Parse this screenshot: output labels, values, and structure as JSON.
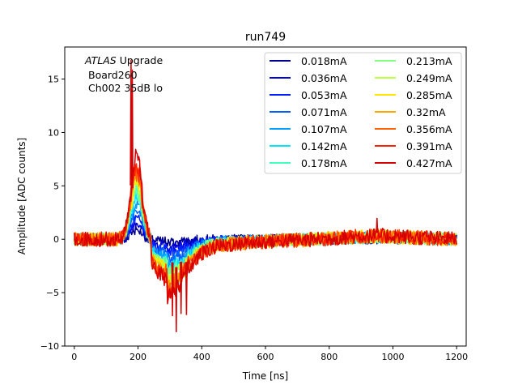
{
  "chart_data": {
    "type": "line",
    "title": "run749",
    "xlabel": "Time [ns]",
    "ylabel": "Amplitude [ADC counts]",
    "xlim": [
      -30,
      1230
    ],
    "ylim": [
      -10,
      18
    ],
    "xticks": [
      0,
      200,
      400,
      600,
      800,
      1000,
      1200
    ],
    "yticks": [
      -10,
      -5,
      0,
      5,
      10,
      15
    ],
    "grid": false,
    "legend_position": "top-right",
    "legend_columns": 2,
    "annotation": {
      "line1_italic": "ATLAS",
      "line1_rest": " Upgrade",
      "line2": "Board260",
      "line3": "Ch002 35dB lo"
    },
    "series_shape_note_x_ns": [
      0,
      150,
      175,
      200,
      230,
      260,
      300,
      340,
      450,
      600,
      800,
      950,
      1200
    ],
    "series": [
      {
        "name": "0.018mA",
        "color": "#00008f",
        "peak": 1.0,
        "undershoot": -0.2
      },
      {
        "name": "0.036mA",
        "color": "#0000d5",
        "peak": 1.7,
        "undershoot": -0.5
      },
      {
        "name": "0.053mA",
        "color": "#0020ff",
        "peak": 2.2,
        "undershoot": -0.9
      },
      {
        "name": "0.071mA",
        "color": "#0060ff",
        "peak": 2.7,
        "undershoot": -1.2
      },
      {
        "name": "0.107mA",
        "color": "#00a0ff",
        "peak": 3.3,
        "undershoot": -1.6
      },
      {
        "name": "0.142mA",
        "color": "#00e5ff",
        "peak": 4.0,
        "undershoot": -1.9
      },
      {
        "name": "0.178mA",
        "color": "#40ffbf",
        "peak": 4.5,
        "undershoot": -2.1
      },
      {
        "name": "0.213mA",
        "color": "#80ff80",
        "peak": 5.0,
        "undershoot": -2.3
      },
      {
        "name": "0.249mA",
        "color": "#bfff40",
        "peak": 5.4,
        "undershoot": -2.5
      },
      {
        "name": "0.285mA",
        "color": "#ffe500",
        "peak": 5.8,
        "undershoot": -2.7
      },
      {
        "name": "0.32mA",
        "color": "#ffa500",
        "peak": 6.2,
        "undershoot": -2.9
      },
      {
        "name": "0.356mA",
        "color": "#ff6000",
        "peak": 6.6,
        "undershoot": -3.1
      },
      {
        "name": "0.391mA",
        "color": "#ff2000",
        "peak": 7.0,
        "undershoot": -3.3
      },
      {
        "name": "0.427mA",
        "color": "#d50000",
        "peak": 7.5,
        "undershoot": -3.5
      }
    ]
  }
}
